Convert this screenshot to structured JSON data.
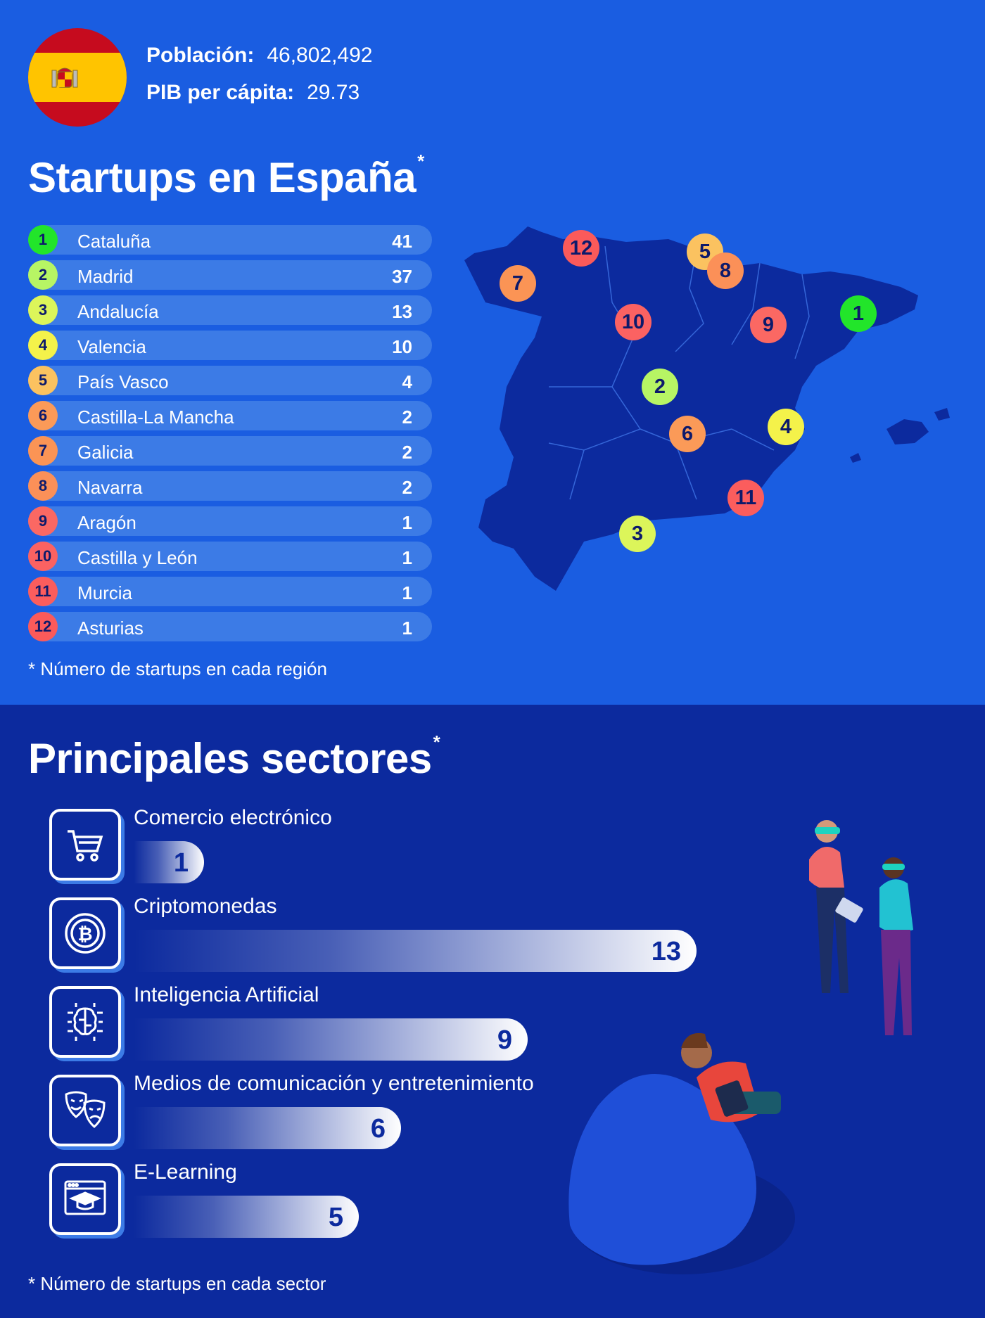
{
  "header": {
    "population_label": "Población:",
    "population_value": "46,802,492",
    "gdp_label": "PIB per cápita:",
    "gdp_value": "29.73"
  },
  "colors": {
    "top_bg": "#1a5de1",
    "bottom_bg": "#0c2a9e",
    "row_bg": "#3c7be6",
    "map_fill": "#0c2a9e"
  },
  "icons": [
    "shopping-cart-icon",
    "bitcoin-icon",
    "ai-chip-icon",
    "theater-masks-icon",
    "e-learning-icon"
  ],
  "chart_data": [
    {
      "type": "table",
      "title": "Startups en España",
      "title_mark": "*",
      "footnote": "* Número de startups en cada región",
      "rows": [
        {
          "rank": "1",
          "region": "Cataluña",
          "value": 41,
          "color": "#22e52a"
        },
        {
          "rank": "2",
          "region": "Madrid",
          "value": 37,
          "color": "#b7f564"
        },
        {
          "rank": "3",
          "region": "Andalucía",
          "value": 13,
          "color": "#dcf55a"
        },
        {
          "rank": "4",
          "region": "Valencia",
          "value": 10,
          "color": "#f4f24a"
        },
        {
          "rank": "5",
          "region": "País Vasco",
          "value": 4,
          "color": "#fbc260"
        },
        {
          "rank": "6",
          "region": "Castilla-La Mancha",
          "value": 2,
          "color": "#fb9a58"
        },
        {
          "rank": "7",
          "region": "Galicia",
          "value": 2,
          "color": "#fb9455"
        },
        {
          "rank": "8",
          "region": "Navarra",
          "value": 2,
          "color": "#fb9058"
        },
        {
          "rank": "9",
          "region": "Aragón",
          "value": 1,
          "color": "#fb6863"
        },
        {
          "rank": "10",
          "region": "Castilla y León",
          "value": 1,
          "color": "#fb6262"
        },
        {
          "rank": "11",
          "region": "Murcia",
          "value": 1,
          "color": "#fb5d5d"
        },
        {
          "rank": "12",
          "region": "Asturias",
          "value": 1,
          "color": "#fb5a5a"
        }
      ]
    },
    {
      "type": "bar",
      "title": "Principales sectores",
      "title_mark": "*",
      "footnote": "* Número de startups en cada sector",
      "categories": [
        "Comercio electrónico",
        "Criptomonedas",
        "Inteligencia Artificial",
        "Medios de comunicación y entretenimiento",
        "E-Learning"
      ],
      "values": [
        1,
        13,
        9,
        6,
        5
      ],
      "value_labels": [
        "1",
        "13",
        "9",
        "6",
        "5"
      ]
    }
  ]
}
